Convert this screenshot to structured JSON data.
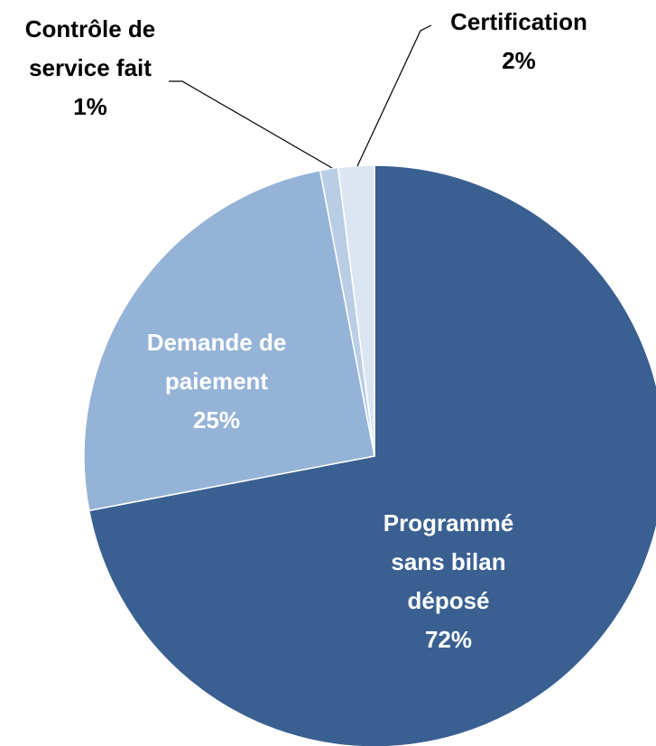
{
  "chart_data": {
    "type": "pie",
    "categories": [
      "Programmé sans bilan déposé",
      "Demande de paiement",
      "Contrôle de service fait",
      "Certification"
    ],
    "values": [
      72,
      25,
      1,
      2
    ],
    "value_labels": [
      "72%",
      "25%",
      "1%",
      "2%"
    ],
    "colors": [
      "#3a6092",
      "#95b3d7",
      "#b9cde5",
      "#dce6f2"
    ]
  }
}
